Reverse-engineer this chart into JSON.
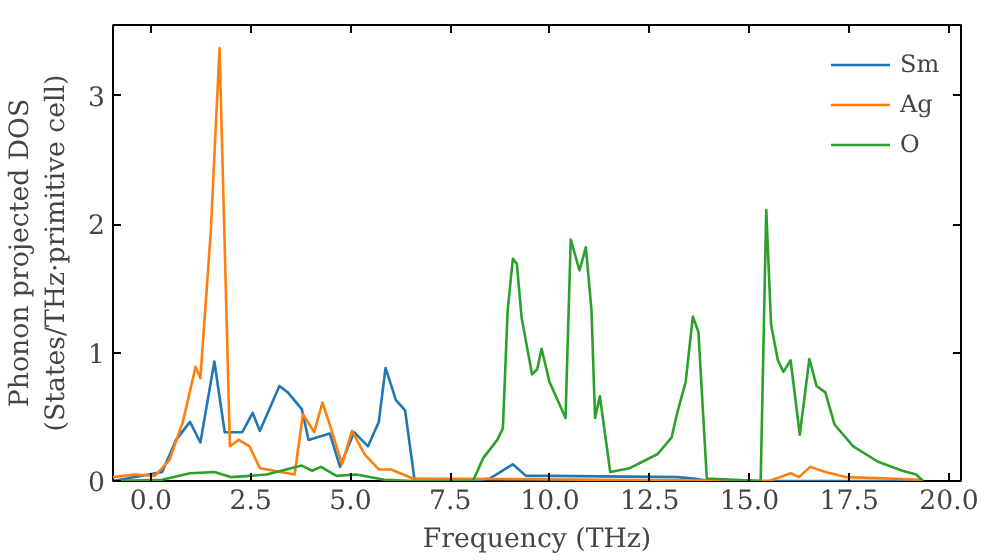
{
  "chart_data": {
    "type": "line",
    "xlabel": "Frequency (THz)",
    "ylabel": "Phonon projected DOS\n(States/THz·primitive cell)",
    "xlim": [
      -0.95,
      20.3
    ],
    "ylim": [
      0,
      3.55
    ],
    "xticks": [
      {
        "value": 0,
        "label": "0.0"
      },
      {
        "value": 2.5,
        "label": "2.5"
      },
      {
        "value": 5,
        "label": "5.0"
      },
      {
        "value": 7.5,
        "label": "7.5"
      },
      {
        "value": 10,
        "label": "10.0"
      },
      {
        "value": 12.5,
        "label": "12.5"
      },
      {
        "value": 15,
        "label": "15.0"
      },
      {
        "value": 17.5,
        "label": "17.5"
      },
      {
        "value": 20,
        "label": "20.0"
      }
    ],
    "yticks": [
      0,
      1,
      2,
      3
    ],
    "grid": false,
    "legend": "top right",
    "line_style": "solid",
    "marker": "none",
    "series": [
      {
        "name": "Sm",
        "color": "#1f77b4",
        "x": [
          -0.95,
          0.28,
          0.63,
          0.98,
          1.24,
          1.59,
          1.85,
          2.29,
          2.55,
          2.73,
          3.22,
          3.43,
          3.78,
          3.95,
          4.48,
          4.74,
          5.09,
          5.44,
          5.71,
          5.88,
          6.14,
          6.37,
          6.61,
          8.0,
          8.5,
          9.07,
          9.4,
          10.0,
          13.2,
          13.6,
          14.0,
          19.35
        ],
        "values": [
          0.0,
          0.07,
          0.32,
          0.46,
          0.3,
          0.93,
          0.38,
          0.38,
          0.53,
          0.39,
          0.74,
          0.69,
          0.56,
          0.32,
          0.37,
          0.11,
          0.38,
          0.27,
          0.46,
          0.88,
          0.63,
          0.55,
          0.0,
          0.0,
          0.02,
          0.13,
          0.04,
          0.04,
          0.03,
          0.02,
          0.0,
          0.0
        ]
      },
      {
        "name": "Ag",
        "color": "#ff7f0e",
        "x": [
          -0.95,
          -0.42,
          0.1,
          0.46,
          0.8,
          1.12,
          1.24,
          1.5,
          1.72,
          1.98,
          2.2,
          2.47,
          2.73,
          3.6,
          3.81,
          4.09,
          4.3,
          4.48,
          4.79,
          5.04,
          5.35,
          5.71,
          6.02,
          6.56,
          15.5,
          16.03,
          16.24,
          16.52,
          16.9,
          17.43,
          19.35
        ],
        "values": [
          0.03,
          0.05,
          0.04,
          0.16,
          0.46,
          0.89,
          0.8,
          1.94,
          3.37,
          0.27,
          0.32,
          0.27,
          0.1,
          0.05,
          0.52,
          0.38,
          0.61,
          0.44,
          0.13,
          0.39,
          0.21,
          0.09,
          0.09,
          0.02,
          0.0,
          0.06,
          0.03,
          0.11,
          0.07,
          0.03,
          0.01
        ]
      },
      {
        "name": "O",
        "color": "#2ca02c",
        "x": [
          -0.95,
          0.28,
          0.98,
          1.59,
          2.02,
          2.9,
          3.78,
          4.04,
          4.26,
          4.65,
          5.15,
          5.85,
          6.6,
          8.07,
          8.33,
          8.68,
          8.82,
          8.94,
          9.07,
          9.17,
          9.29,
          9.55,
          9.68,
          9.79,
          9.99,
          10.39,
          10.52,
          10.74,
          10.9,
          11.04,
          11.13,
          11.25,
          11.51,
          12.0,
          12.7,
          13.05,
          13.18,
          13.4,
          13.58,
          13.72,
          13.93,
          15.28,
          15.42,
          15.54,
          15.71,
          15.85,
          16.03,
          16.26,
          16.5,
          16.68,
          16.9,
          17.13,
          17.6,
          18.22,
          18.83,
          19.18,
          19.35
        ],
        "values": [
          0.0,
          0.01,
          0.06,
          0.07,
          0.03,
          0.05,
          0.12,
          0.08,
          0.11,
          0.04,
          0.05,
          0.01,
          0.0,
          0.0,
          0.18,
          0.32,
          0.41,
          1.33,
          1.73,
          1.69,
          1.27,
          0.83,
          0.87,
          1.03,
          0.77,
          0.49,
          1.88,
          1.64,
          1.82,
          1.33,
          0.49,
          0.66,
          0.07,
          0.1,
          0.21,
          0.34,
          0.52,
          0.77,
          1.28,
          1.16,
          0.02,
          0.0,
          2.11,
          1.22,
          0.94,
          0.85,
          0.94,
          0.36,
          0.95,
          0.74,
          0.69,
          0.44,
          0.27,
          0.15,
          0.08,
          0.05,
          0.0
        ]
      }
    ]
  }
}
